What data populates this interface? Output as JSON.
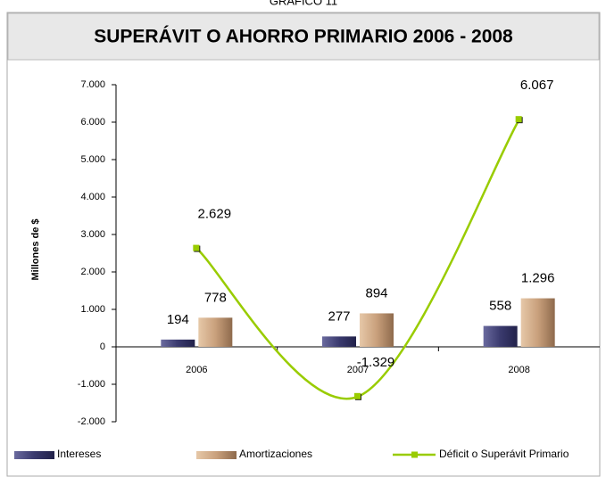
{
  "caption": "GRÁFICO 11",
  "chart_data": {
    "type": "bar",
    "title": "SUPERÁVIT O AHORRO PRIMARIO 2006 - 2008",
    "y_label": "Millones de $",
    "categories": [
      "2006",
      "2007",
      "2008"
    ],
    "series": [
      {
        "name": "Intereses",
        "type": "bar",
        "color": "#3a3a6e",
        "values": [
          194,
          277,
          558
        ],
        "value_labels": [
          "194",
          "277",
          "558"
        ]
      },
      {
        "name": "Amortizaciones",
        "type": "bar",
        "color": "#c9a07c",
        "values": [
          778,
          894,
          1296
        ],
        "value_labels": [
          "778",
          "894",
          "1.296"
        ]
      },
      {
        "name": "Déficit o Superávit Primario",
        "type": "line",
        "color": "#99cc00",
        "values": [
          2629,
          -1329,
          6067
        ],
        "value_labels": [
          "2.629",
          "-1.329",
          "6.067"
        ]
      }
    ],
    "ylim": [
      -2000,
      7000
    ],
    "yticks": [
      {
        "value": -2000,
        "label": "-2.000"
      },
      {
        "value": -1000,
        "label": "-1.000"
      },
      0,
      {
        "value": 1000,
        "label": "1.000"
      },
      {
        "value": 2000,
        "label": "2.000"
      },
      {
        "value": 3000,
        "label": "3.000"
      },
      {
        "value": 4000,
        "label": "4.000"
      },
      {
        "value": 5000,
        "label": "5.000"
      },
      {
        "value": 6000,
        "label": "6.000"
      },
      {
        "value": 7000,
        "label": "7.000"
      }
    ],
    "legend": "bottom"
  }
}
